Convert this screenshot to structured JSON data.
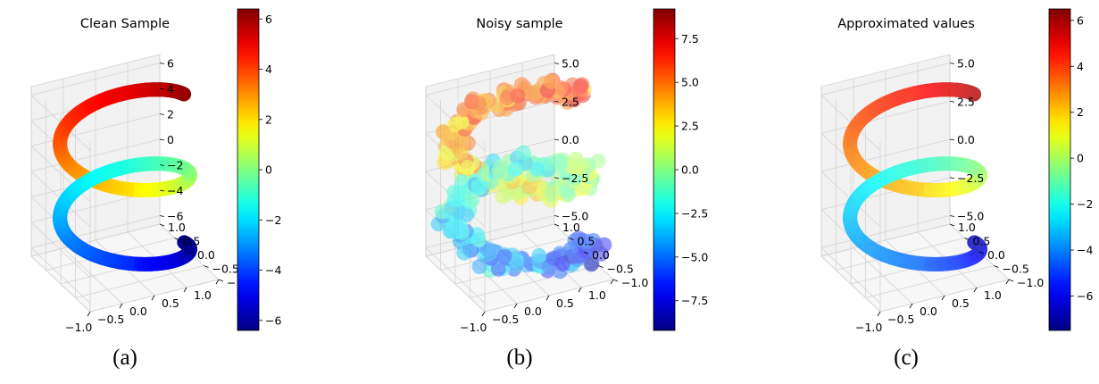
{
  "chart_data": [
    {
      "type": "scatter",
      "projection": "3d",
      "title": "Clean Sample",
      "caption": "(a)",
      "x_ticks": [
        "−1.0",
        "−0.5",
        "0.0",
        "0.5",
        "1.0"
      ],
      "y_ticks": [
        "−1.0",
        "−0.5",
        "0.0",
        "0.5",
        "1.0"
      ],
      "z_ticks": [
        "−6",
        "−4",
        "−2",
        "0",
        "2",
        "4",
        "6"
      ],
      "colorbar_ticks": [
        "−6",
        "−4",
        "−2",
        "0",
        "2",
        "4",
        "6"
      ],
      "colorbar_range": [
        -6.4,
        6.4
      ],
      "colormap": "jet",
      "series": [
        {
          "t_range": [
            -6.28,
            6.28
          ],
          "x": "cos(t)",
          "y": "sin(t)",
          "z": "t",
          "color": "z",
          "noise": 0,
          "marker_size": "large",
          "opacity": 1.0
        }
      ],
      "grid": true
    },
    {
      "type": "scatter",
      "projection": "3d",
      "title": "Noisy sample",
      "caption": "(b)",
      "x_ticks": [
        "−1.0",
        "−0.5",
        "0.0",
        "0.5",
        "1.0"
      ],
      "y_ticks": [
        "−1.0",
        "−0.5",
        "0.0",
        "0.5",
        "1.0"
      ],
      "z_ticks": [
        "−5.0",
        "−2.5",
        "0.0",
        "2.5",
        "5.0"
      ],
      "colorbar_ticks": [
        "−7.5",
        "−5.0",
        "−2.5",
        "0.0",
        "2.5",
        "5.0",
        "7.5"
      ],
      "colorbar_range": [
        -9.2,
        9.2
      ],
      "colormap": "jet",
      "series": [
        {
          "t_range": [
            -6.28,
            6.28
          ],
          "x": "cos(t)",
          "y": "sin(t)",
          "z": "t",
          "color": "z + noise",
          "noise": 0.12,
          "marker_size": "large",
          "opacity": 0.6
        }
      ],
      "grid": true
    },
    {
      "type": "scatter",
      "projection": "3d",
      "title": "Approximated values",
      "caption": "(c)",
      "x_ticks": [
        "−1.0",
        "−0.5",
        "0.0",
        "0.5",
        "1.0"
      ],
      "y_ticks": [
        "−1.0",
        "−0.5",
        "0.0",
        "0.5",
        "1.0"
      ],
      "z_ticks": [
        "−5.0",
        "−2.5",
        "0.0",
        "2.5",
        "5.0"
      ],
      "colorbar_ticks": [
        "−6",
        "−4",
        "−2",
        "0",
        "2",
        "4",
        "6"
      ],
      "colorbar_range": [
        -7.5,
        6.5
      ],
      "colormap": "jet",
      "series": [
        {
          "t_range": [
            -6.28,
            6.28
          ],
          "x": "cos(t)",
          "y": "sin(t)",
          "z": "t",
          "color": "approx(z)",
          "noise": 0,
          "marker_size": "large",
          "opacity": 0.8
        }
      ],
      "grid": true
    }
  ]
}
